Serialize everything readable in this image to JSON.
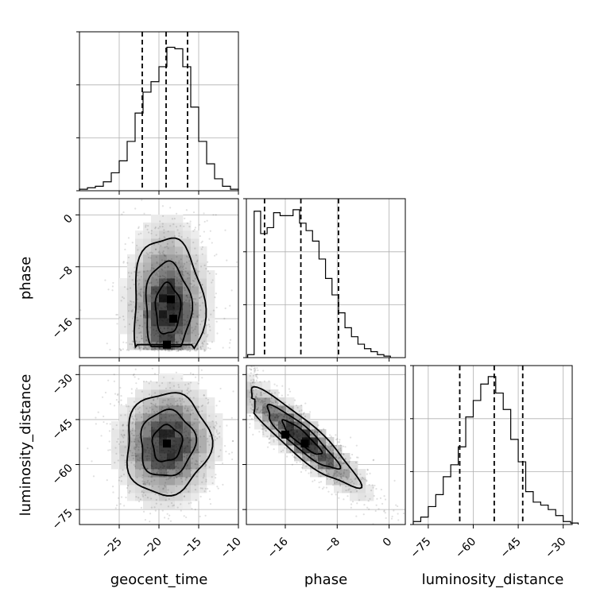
{
  "chart_data": {
    "type": "corner",
    "parameters": [
      "geocent_time",
      "phase",
      "luminosity_distance"
    ],
    "axis_labels": {
      "x": [
        "geocent_time",
        "phase",
        "luminosity_distance"
      ],
      "y": [
        "phase",
        "luminosity_distance"
      ]
    },
    "ranges": {
      "geocent_time": [
        -30,
        -10
      ],
      "phase": [
        -22,
        2.5
      ],
      "luminosity_distance": [
        -80,
        -27
      ]
    },
    "ticks": {
      "geocent_time": [
        -25,
        -20,
        -15,
        -10
      ],
      "phase": [
        -16,
        -8,
        0
      ],
      "luminosity_distance": [
        -75,
        -60,
        -45,
        -30
      ]
    },
    "grid": true,
    "histograms": {
      "geocent_time": {
        "bin_width": 1,
        "bins": [
          [
            -30,
            0.01
          ],
          [
            -29,
            0.02
          ],
          [
            -28,
            0.03
          ],
          [
            -27,
            0.06
          ],
          [
            -26,
            0.12
          ],
          [
            -25,
            0.2
          ],
          [
            -24,
            0.33
          ],
          [
            -23,
            0.52
          ],
          [
            -22,
            0.66
          ],
          [
            -21,
            0.73
          ],
          [
            -20,
            0.83
          ],
          [
            -19,
            0.96
          ],
          [
            -18,
            0.95
          ],
          [
            -17,
            0.83
          ],
          [
            -16,
            0.56
          ],
          [
            -15,
            0.33
          ],
          [
            -14,
            0.18
          ],
          [
            -13,
            0.08
          ],
          [
            -12,
            0.03
          ],
          [
            -11,
            0.01
          ]
        ],
        "quantiles": [
          -22.1,
          -19.1,
          -16.4
        ]
      },
      "phase": {
        "bin_width": 1,
        "bins": [
          [
            -21.8,
            0.02
          ],
          [
            -20.8,
            0.98
          ],
          [
            -19.8,
            0.83
          ],
          [
            -18.8,
            0.87
          ],
          [
            -17.8,
            0.97
          ],
          [
            -16.8,
            0.95
          ],
          [
            -15.8,
            0.95
          ],
          [
            -14.8,
            0.99
          ],
          [
            -13.8,
            0.9
          ],
          [
            -12.8,
            0.85
          ],
          [
            -11.8,
            0.78
          ],
          [
            -10.8,
            0.66
          ],
          [
            -9.8,
            0.53
          ],
          [
            -8.8,
            0.42
          ],
          [
            -7.8,
            0.3
          ],
          [
            -6.8,
            0.2
          ],
          [
            -5.8,
            0.14
          ],
          [
            -4.8,
            0.09
          ],
          [
            -3.8,
            0.06
          ],
          [
            -2.8,
            0.04
          ],
          [
            -1.8,
            0.02
          ],
          [
            -0.8,
            0.01
          ]
        ],
        "quantiles": [
          -19.2,
          -13.6,
          -7.8
        ]
      },
      "luminosity_distance": {
        "bin_width": 2.5,
        "bins": [
          [
            -80,
            0.02
          ],
          [
            -77.5,
            0.05
          ],
          [
            -75,
            0.12
          ],
          [
            -72.5,
            0.2
          ],
          [
            -70,
            0.32
          ],
          [
            -67.5,
            0.4
          ],
          [
            -65,
            0.52
          ],
          [
            -62.5,
            0.72
          ],
          [
            -60,
            0.83
          ],
          [
            -57.5,
            0.94
          ],
          [
            -55,
            0.99
          ],
          [
            -52.5,
            0.88
          ],
          [
            -50,
            0.77
          ],
          [
            -47.5,
            0.57
          ],
          [
            -45,
            0.42
          ],
          [
            -42.5,
            0.22
          ],
          [
            -40,
            0.15
          ],
          [
            -37.5,
            0.13
          ],
          [
            -35,
            0.1
          ],
          [
            -32.5,
            0.06
          ],
          [
            -30,
            0.02
          ],
          [
            -27.5,
            0.01
          ]
        ],
        "quantiles": [
          -64.5,
          -53.0,
          -43.5
        ]
      }
    },
    "posteriors_2d": [
      {
        "x": "geocent_time",
        "y": "phase",
        "mean": [
          -18.9,
          -14.5
        ],
        "sd": [
          2.6,
          6.5
        ],
        "corr": 0.0,
        "mode_points": [
          [
            -18.5,
            -13
          ],
          [
            -19.0,
            -20
          ],
          [
            -18.2,
            -16
          ]
        ]
      },
      {
        "x": "geocent_time",
        "y": "luminosity_distance",
        "mean": [
          -19.0,
          -53.0
        ],
        "sd": [
          3.1,
          10.0
        ],
        "corr": 0.05,
        "mode_points": [
          [
            -19.0,
            -53
          ]
        ]
      },
      {
        "x": "phase",
        "y": "luminosity_distance",
        "mean": [
          -13.5,
          -51.0
        ],
        "sd": [
          5.0,
          9.5
        ],
        "corr": -0.9,
        "mode_points": [
          [
            -16,
            -50
          ],
          [
            -13,
            -53
          ]
        ]
      }
    ]
  }
}
